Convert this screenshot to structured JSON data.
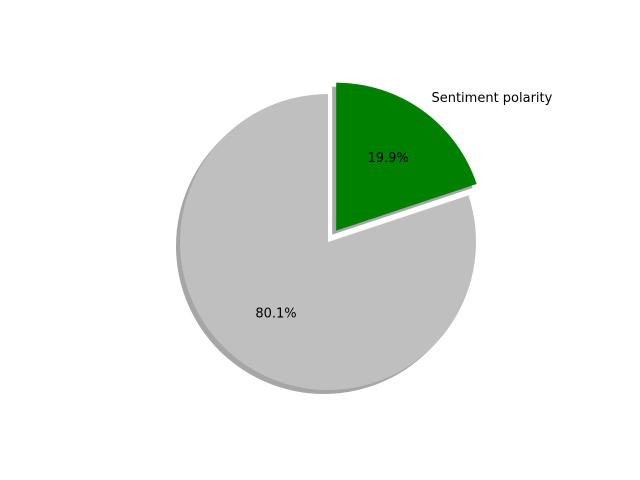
{
  "chart_data": {
    "type": "pie",
    "title": "",
    "slices": [
      {
        "label": "Sentiment polarity",
        "value": 19.9,
        "pct_label": "19.9%",
        "color": "#008000",
        "explode": true
      },
      {
        "label": "",
        "value": 80.1,
        "pct_label": "80.1%",
        "color": "#bfbfbf",
        "explode": false
      }
    ],
    "start_angle_deg": 90,
    "direction": "clockwise",
    "shadow": true
  }
}
